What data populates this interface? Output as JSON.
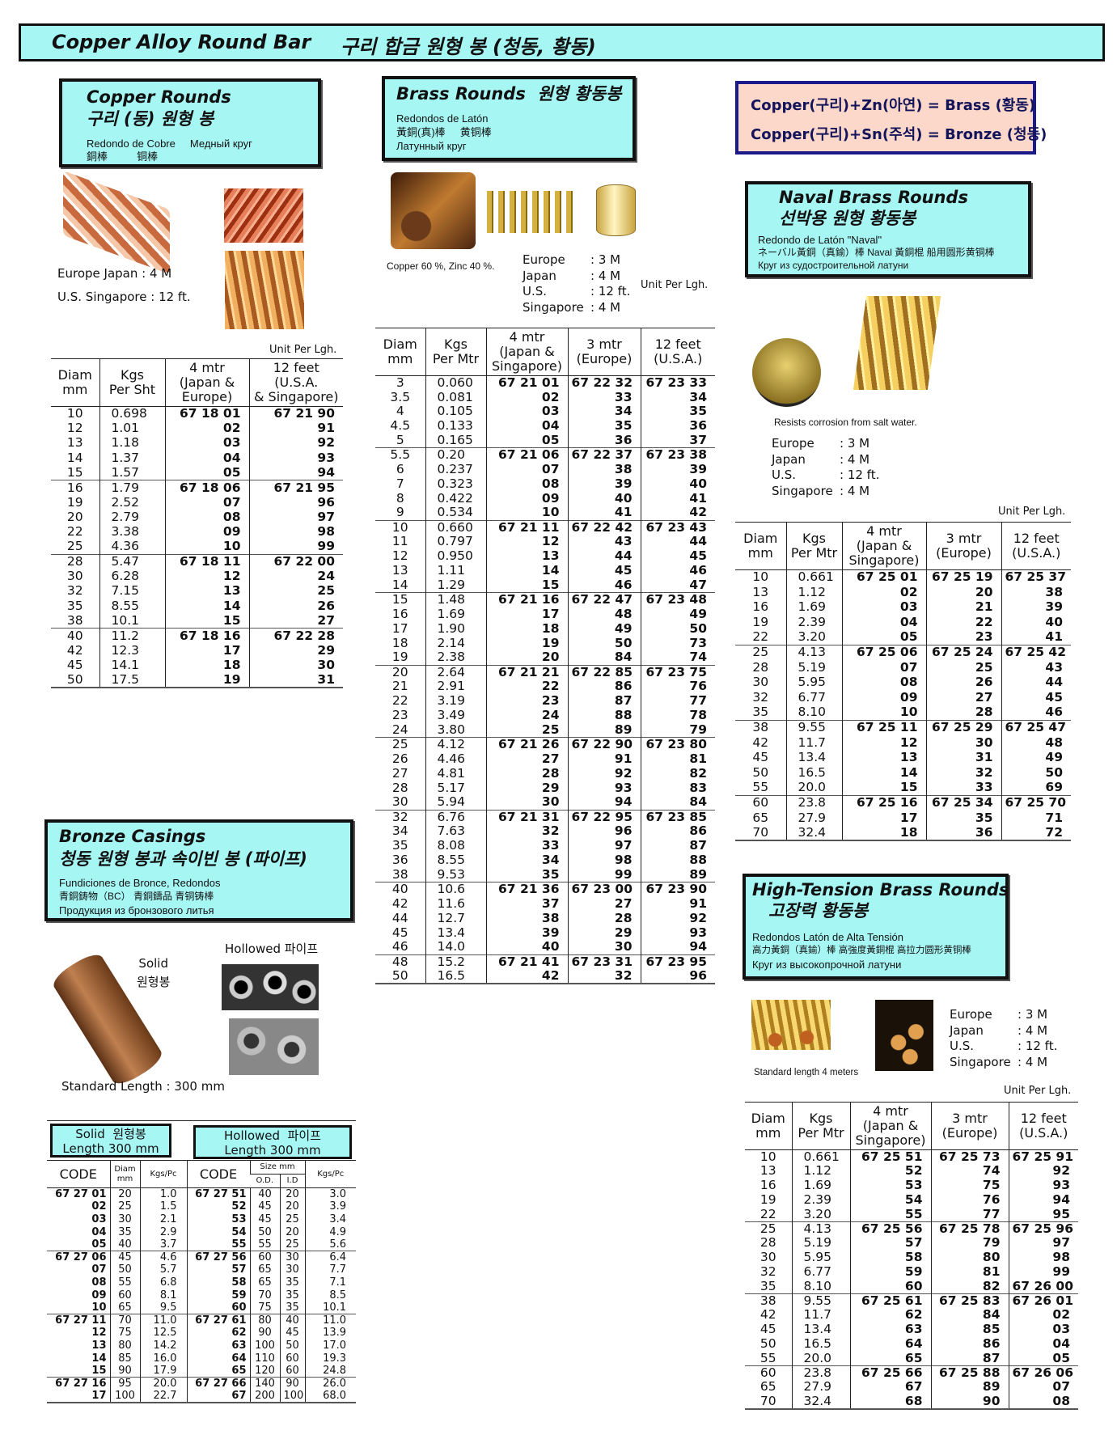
{
  "title": {
    "en": "Copper  Alloy  Round Bar",
    "ko": "구리 합금 원형 봉 (청동, 황동)"
  },
  "formula": {
    "line1": "Copper(구리)+Zn(아연)  =  Brass (황동)",
    "line2": "Copper(구리)+Sn(주석)  =  Bronze (청동)"
  },
  "colors": {
    "box_bg": "#a6f6f4",
    "formula_bg": "#fbd8c9",
    "formula_border": "#1a1a8a"
  },
  "copper": {
    "title_en": "Copper Rounds",
    "title_ko": "구리 (동) 원형 봉",
    "sub1": "Redondo de Cobre     Медный круг",
    "sub2": "銅棒          铜棒",
    "lengths": [
      "Europe  Japan : 4 M",
      "U.S.  Singapore : 12 ft."
    ],
    "unit": "Unit Per Lgh.",
    "table": {
      "headers": [
        "Diam\nmm",
        "Kgs\nPer Sht",
        "4 mtr\n(Japan &\nEurope)",
        "12 feet\n(U.S.A.\n& Singapore)"
      ],
      "align": [
        "c",
        "l",
        "r",
        "r"
      ],
      "groups": [
        [
          [
            "10",
            "0.698",
            "67 18 01",
            "67 21 90"
          ],
          [
            "12",
            "1.01",
            "02",
            "91"
          ],
          [
            "13",
            "1.18",
            "03",
            "92"
          ],
          [
            "14",
            "1.37",
            "04",
            "93"
          ],
          [
            "15",
            "1.57",
            "05",
            "94"
          ]
        ],
        [
          [
            "16",
            "1.79",
            "67 18 06",
            "67 21 95"
          ],
          [
            "19",
            "2.52",
            "07",
            "96"
          ],
          [
            "20",
            "2.79",
            "08",
            "97"
          ],
          [
            "22",
            "3.38",
            "09",
            "98"
          ],
          [
            "25",
            "4.36",
            "10",
            "99"
          ]
        ],
        [
          [
            "28",
            "5.47",
            "67 18 11",
            "67 22 00"
          ],
          [
            "30",
            "6.28",
            "12",
            "24"
          ],
          [
            "32",
            "7.15",
            "13",
            "25"
          ],
          [
            "35",
            "8.55",
            "14",
            "26"
          ],
          [
            "38",
            "10.1",
            "15",
            "27"
          ]
        ],
        [
          [
            "40",
            "11.2",
            "67 18 16",
            "67 22 28"
          ],
          [
            "42",
            "12.3",
            "17",
            "29"
          ],
          [
            "45",
            "14.1",
            "18",
            "30"
          ],
          [
            "50",
            "17.5",
            "19",
            "31"
          ]
        ]
      ]
    }
  },
  "brass": {
    "title_en": "Brass Rounds",
    "title_ko": "원형 황동봉",
    "sub1": "Redondos de Latón",
    "sub2": "黃銅(真)棒     黄铜棒",
    "sub3": "Латунный круг",
    "composition": "Copper 60 %, Zinc 40 %.",
    "lengths": [
      [
        "Europe",
        ": 3 M"
      ],
      [
        "Japan",
        ": 4 M"
      ],
      [
        "U.S.",
        ": 12 ft."
      ],
      [
        "Singapore",
        ": 4 M"
      ]
    ],
    "unit": "Unit Per Lgh.",
    "table": {
      "headers": [
        "Diam\nmm",
        "Kgs\nPer Mtr",
        "4 mtr\n(Japan &\nSingapore)",
        "3 mtr\n(Europe)",
        "12 feet\n(U.S.A.)"
      ],
      "align": [
        "c",
        "l",
        "r",
        "r",
        "r"
      ],
      "groups": [
        [
          [
            "3",
            "0.060",
            "67 21 01",
            "67 22 32",
            "67 23 33"
          ],
          [
            "3.5",
            "0.081",
            "02",
            "33",
            "34"
          ],
          [
            "4",
            "0.105",
            "03",
            "34",
            "35"
          ],
          [
            "4.5",
            "0.133",
            "04",
            "35",
            "36"
          ],
          [
            "5",
            "0.165",
            "05",
            "36",
            "37"
          ]
        ],
        [
          [
            "5.5",
            "0.20",
            "67 21 06",
            "67 22 37",
            "67 23 38"
          ],
          [
            "6",
            "0.237",
            "07",
            "38",
            "39"
          ],
          [
            "7",
            "0.323",
            "08",
            "39",
            "40"
          ],
          [
            "8",
            "0.422",
            "09",
            "40",
            "41"
          ],
          [
            "9",
            "0.534",
            "10",
            "41",
            "42"
          ]
        ],
        [
          [
            "10",
            "0.660",
            "67 21 11",
            "67 22 42",
            "67 23 43"
          ],
          [
            "11",
            "0.797",
            "12",
            "43",
            "44"
          ],
          [
            "12",
            "0.950",
            "13",
            "44",
            "45"
          ],
          [
            "13",
            "1.11",
            "14",
            "45",
            "46"
          ],
          [
            "14",
            "1.29",
            "15",
            "46",
            "47"
          ]
        ],
        [
          [
            "15",
            "1.48",
            "67 21 16",
            "67 22 47",
            "67 23 48"
          ],
          [
            "16",
            "1.69",
            "17",
            "48",
            "49"
          ],
          [
            "17",
            "1.90",
            "18",
            "49",
            "50"
          ],
          [
            "18",
            "2.14",
            "19",
            "50",
            "73"
          ],
          [
            "19",
            "2.38",
            "20",
            "84",
            "74"
          ]
        ],
        [
          [
            "20",
            "2.64",
            "67 21 21",
            "67 22 85",
            "67 23 75"
          ],
          [
            "21",
            "2.91",
            "22",
            "86",
            "76"
          ],
          [
            "22",
            "3.19",
            "23",
            "87",
            "77"
          ],
          [
            "23",
            "3.49",
            "24",
            "88",
            "78"
          ],
          [
            "24",
            "3.80",
            "25",
            "89",
            "79"
          ]
        ],
        [
          [
            "25",
            "4.12",
            "67 21 26",
            "67 22 90",
            "67 23 80"
          ],
          [
            "26",
            "4.46",
            "27",
            "91",
            "81"
          ],
          [
            "27",
            "4.81",
            "28",
            "92",
            "82"
          ],
          [
            "28",
            "5.17",
            "29",
            "93",
            "83"
          ],
          [
            "30",
            "5.94",
            "30",
            "94",
            "84"
          ]
        ],
        [
          [
            "32",
            "6.76",
            "67 21 31",
            "67 22 95",
            "67 23 85"
          ],
          [
            "34",
            "7.63",
            "32",
            "96",
            "86"
          ],
          [
            "35",
            "8.08",
            "33",
            "97",
            "87"
          ],
          [
            "36",
            "8.55",
            "34",
            "98",
            "88"
          ],
          [
            "38",
            "9.53",
            "35",
            "99",
            "89"
          ]
        ],
        [
          [
            "40",
            "10.6",
            "67 21 36",
            "67 23 00",
            "67 23 90"
          ],
          [
            "42",
            "11.6",
            "37",
            "27",
            "91"
          ],
          [
            "44",
            "12.7",
            "38",
            "28",
            "92"
          ],
          [
            "45",
            "13.4",
            "39",
            "29",
            "93"
          ],
          [
            "46",
            "14.0",
            "40",
            "30",
            "94"
          ]
        ],
        [
          [
            "48",
            "15.2",
            "67 21 41",
            "67 23 31",
            "67 23 95"
          ],
          [
            "50",
            "16.5",
            "42",
            "32",
            "96"
          ]
        ]
      ]
    }
  },
  "naval": {
    "title_en": "Naval Brass Rounds",
    "title_ko": "선박용 원형 황동봉",
    "sub1": "Redondo de Latón \"Naval\"",
    "sub2": "ネーバル黃銅（真鍮）棒   Naval 黃銅棍 船用圆形黄铜棒",
    "sub3": "Круг из судостроительной латуни",
    "note": "Resists corrosion from  salt water.",
    "lengths": [
      [
        "Europe",
        ": 3 M"
      ],
      [
        "Japan",
        ": 4 M"
      ],
      [
        "U.S.",
        ": 12 ft."
      ],
      [
        "Singapore",
        ": 4 M"
      ]
    ],
    "unit": "Unit Per Lgh.",
    "table": {
      "headers": [
        "Diam\nmm",
        "Kgs\nPer Mtr",
        "4 mtr\n(Japan &\nSingapore)",
        "3 mtr\n(Europe)",
        "12 feet\n(U.S.A.)"
      ],
      "align": [
        "c",
        "l",
        "r",
        "r",
        "r"
      ],
      "groups": [
        [
          [
            "10",
            "0.661",
            "67 25 01",
            "67 25 19",
            "67 25 37"
          ],
          [
            "13",
            "1.12",
            "02",
            "20",
            "38"
          ],
          [
            "16",
            "1.69",
            "03",
            "21",
            "39"
          ],
          [
            "19",
            "2.39",
            "04",
            "22",
            "40"
          ],
          [
            "22",
            "3.20",
            "05",
            "23",
            "41"
          ]
        ],
        [
          [
            "25",
            "4.13",
            "67 25 06",
            "67 25 24",
            "67 25 42"
          ],
          [
            "28",
            "5.19",
            "07",
            "25",
            "43"
          ],
          [
            "30",
            "5.95",
            "08",
            "26",
            "44"
          ],
          [
            "32",
            "6.77",
            "09",
            "27",
            "45"
          ],
          [
            "35",
            "8.10",
            "10",
            "28",
            "46"
          ]
        ],
        [
          [
            "38",
            "9.55",
            "67 25 11",
            "67 25 29",
            "67 25 47"
          ],
          [
            "42",
            "11.7",
            "12",
            "30",
            "48"
          ],
          [
            "45",
            "13.4",
            "13",
            "31",
            "49"
          ],
          [
            "50",
            "16.5",
            "14",
            "32",
            "50"
          ],
          [
            "55",
            "20.0",
            "15",
            "33",
            "69"
          ]
        ],
        [
          [
            "60",
            "23.8",
            "67 25 16",
            "67 25 34",
            "67 25 70"
          ],
          [
            "65",
            "27.9",
            "17",
            "35",
            "71"
          ],
          [
            "70",
            "32.4",
            "18",
            "36",
            "72"
          ]
        ]
      ]
    }
  },
  "high_tension": {
    "title_en": "High-Tension Brass Rounds",
    "title_ko": "고장력 황동봉",
    "sub1": "Redondos Latón de Alta Tensión",
    "sub2": "高力黃銅（真鍮）棒  高強度黃銅棍  高拉力圆形黄铜棒",
    "sub3": "Круг из высокопрочной латуни",
    "note": "Standard length 4 meters",
    "lengths": [
      [
        "Europe",
        ": 3 M"
      ],
      [
        "Japan",
        ": 4 M"
      ],
      [
        "U.S.",
        ": 12 ft."
      ],
      [
        "Singapore",
        ": 4 M"
      ]
    ],
    "unit": "Unit Per Lgh.",
    "table": {
      "headers": [
        "Diam\nmm",
        "Kgs\nPer Mtr",
        "4 mtr\n(Japan &\nSingapore)",
        "3 mtr\n(Europe)",
        "12 feet\n(U.S.A.)"
      ],
      "align": [
        "c",
        "l",
        "r",
        "r",
        "r"
      ],
      "groups": [
        [
          [
            "10",
            "0.661",
            "67 25 51",
            "67 25 73",
            "67 25 91"
          ],
          [
            "13",
            "1.12",
            "52",
            "74",
            "92"
          ],
          [
            "16",
            "1.69",
            "53",
            "75",
            "93"
          ],
          [
            "19",
            "2.39",
            "54",
            "76",
            "94"
          ],
          [
            "22",
            "3.20",
            "55",
            "77",
            "95"
          ]
        ],
        [
          [
            "25",
            "4.13",
            "67 25 56",
            "67 25 78",
            "67 25 96"
          ],
          [
            "28",
            "5.19",
            "57",
            "79",
            "97"
          ],
          [
            "30",
            "5.95",
            "58",
            "80",
            "98"
          ],
          [
            "32",
            "6.77",
            "59",
            "81",
            "99"
          ],
          [
            "35",
            "8.10",
            "60",
            "82",
            "67 26 00"
          ]
        ],
        [
          [
            "38",
            "9.55",
            "67 25 61",
            "67 25 83",
            "67 26 01"
          ],
          [
            "42",
            "11.7",
            "62",
            "84",
            "02"
          ],
          [
            "45",
            "13.4",
            "63",
            "85",
            "03"
          ],
          [
            "50",
            "16.5",
            "64",
            "86",
            "04"
          ],
          [
            "55",
            "20.0",
            "65",
            "87",
            "05"
          ]
        ],
        [
          [
            "60",
            "23.8",
            "67 25 66",
            "67 25 88",
            "67 26 06"
          ],
          [
            "65",
            "27.9",
            "67",
            "89",
            "07"
          ],
          [
            "70",
            "32.4",
            "68",
            "90",
            "08"
          ]
        ]
      ]
    }
  },
  "bronze": {
    "title_en": "Bronze Casings",
    "title_ko": "청동 원형 봉과 속이빈 봉 (파이프)",
    "sub1": "Fundiciones de Bronce, Redondos",
    "sub2": "青銅鋳物（BC） 青銅鑄品  青铜铸棒",
    "sub3": "Продукция из бронзового литья",
    "solid_label": "Solid\n원형봉",
    "hollow_label": "Hollowed  파이프",
    "standard_length": "Standard Length : 300 mm",
    "solid_box": "Solid  원형봉\nLength 300 mm",
    "hollow_box": "Hollowed  파이프\nLength 300 mm",
    "table": {
      "h_code": "CODE",
      "h_diam": "Diam\nmm",
      "h_kgs": "Kgs/Pc",
      "h_size": "Size mm",
      "h_od": "O.D.",
      "h_id": "I.D",
      "align": [
        "r",
        "c",
        "r2",
        "r",
        "c",
        "c",
        "r2"
      ],
      "groups": [
        [
          [
            "67 27 01",
            "20",
            "1.0",
            "67 27 51",
            "40",
            "20",
            "3.0"
          ],
          [
            "02",
            "25",
            "1.5",
            "52",
            "45",
            "20",
            "3.9"
          ],
          [
            "03",
            "30",
            "2.1",
            "53",
            "45",
            "25",
            "3.4"
          ],
          [
            "04",
            "35",
            "2.9",
            "54",
            "50",
            "20",
            "4.9"
          ],
          [
            "05",
            "40",
            "3.7",
            "55",
            "55",
            "25",
            "5.6"
          ]
        ],
        [
          [
            "67 27 06",
            "45",
            "4.6",
            "67 27 56",
            "60",
            "30",
            "6.4"
          ],
          [
            "07",
            "50",
            "5.7",
            "57",
            "65",
            "30",
            "7.7"
          ],
          [
            "08",
            "55",
            "6.8",
            "58",
            "65",
            "35",
            "7.1"
          ],
          [
            "09",
            "60",
            "8.1",
            "59",
            "70",
            "35",
            "8.5"
          ],
          [
            "10",
            "65",
            "9.5",
            "60",
            "75",
            "35",
            "10.1"
          ]
        ],
        [
          [
            "67 27 11",
            "70",
            "11.0",
            "67 27 61",
            "80",
            "40",
            "11.0"
          ],
          [
            "12",
            "75",
            "12.5",
            "62",
            "90",
            "45",
            "13.9"
          ],
          [
            "13",
            "80",
            "14.2",
            "63",
            "100",
            "50",
            "17.0"
          ],
          [
            "14",
            "85",
            "16.0",
            "64",
            "110",
            "60",
            "19.3"
          ],
          [
            "15",
            "90",
            "17.9",
            "65",
            "120",
            "60",
            "24.8"
          ]
        ],
        [
          [
            "67 27 16",
            "95",
            "20.0",
            "67 27 66",
            "140",
            "90",
            "26.0"
          ],
          [
            "17",
            "100",
            "22.7",
            "67",
            "200",
            "100",
            "68.0"
          ]
        ]
      ]
    }
  }
}
